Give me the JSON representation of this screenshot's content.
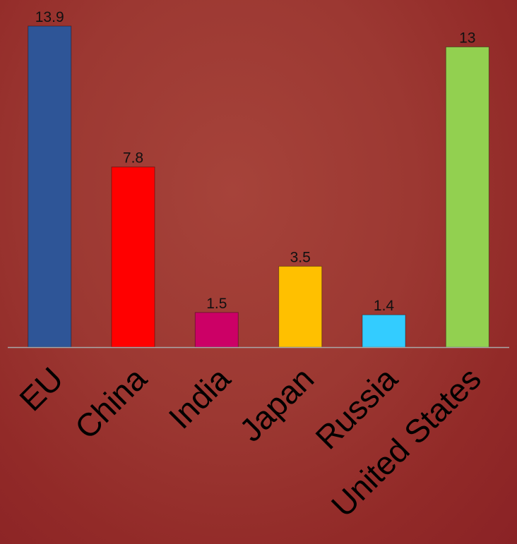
{
  "chart_data": {
    "type": "bar",
    "title": "",
    "xlabel": "",
    "ylabel": "",
    "categories": [
      "EU",
      "China",
      "India",
      "Japan",
      "Russia",
      "United States"
    ],
    "values": [
      13.9,
      7.8,
      1.5,
      3.5,
      1.4,
      13
    ],
    "value_labels": [
      "13.9",
      "7.8",
      "1.5",
      "3.5",
      "1.4",
      "13"
    ],
    "colors": [
      "#2e5597",
      "#ff0000",
      "#cc0066",
      "#ffc000",
      "#33ccff",
      "#92d050"
    ],
    "ylim": [
      0,
      13.9
    ],
    "grid": false,
    "legend": "none",
    "background_color": "#9c3832",
    "axis_color": "#a8a8a8"
  }
}
